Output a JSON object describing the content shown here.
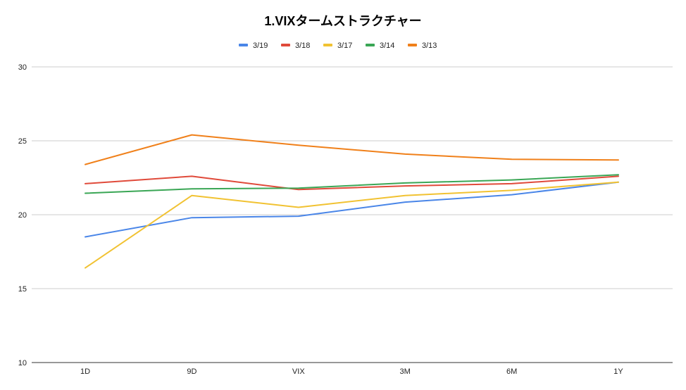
{
  "chart_data": {
    "type": "line",
    "title": "1.VIXタームストラクチャー",
    "xlabel": "",
    "ylabel": "",
    "categories": [
      "1D",
      "9D",
      "VIX",
      "3M",
      "6M",
      "1Y"
    ],
    "ylim": [
      10,
      30
    ],
    "yticks": [
      10,
      15,
      20,
      25,
      30
    ],
    "grid": true,
    "legend_position": "top",
    "series": [
      {
        "name": "3/19",
        "color": "#4a86e8",
        "values": [
          18.5,
          19.8,
          19.9,
          20.85,
          21.35,
          22.2
        ]
      },
      {
        "name": "3/18",
        "color": "#e04a3a",
        "values": [
          22.1,
          22.6,
          21.7,
          21.95,
          22.1,
          22.6
        ]
      },
      {
        "name": "3/17",
        "color": "#f1c232",
        "values": [
          16.4,
          21.3,
          20.5,
          21.3,
          21.65,
          22.2
        ]
      },
      {
        "name": "3/14",
        "color": "#3aa655",
        "values": [
          21.45,
          21.75,
          21.8,
          22.15,
          22.35,
          22.7
        ]
      },
      {
        "name": "3/13",
        "color": "#f0801a",
        "values": [
          23.4,
          25.4,
          24.7,
          24.1,
          23.75,
          23.7
        ]
      }
    ]
  }
}
